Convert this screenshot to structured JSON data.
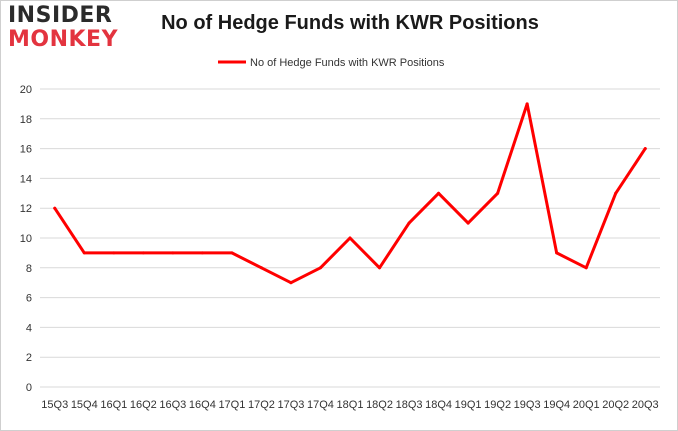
{
  "logo": {
    "line1": "INSIDER",
    "line2": "MONKEY"
  },
  "colors": {
    "series": "#ff0000",
    "grid": "#d9d9d9",
    "logo_dark": "#2b2b2b",
    "logo_red": "#e3343f"
  },
  "chart_data": {
    "type": "line",
    "title": "No of Hedge Funds with KWR Positions",
    "xlabel": "",
    "ylabel": "",
    "ylim": [
      0,
      20
    ],
    "yticks": [
      0,
      2,
      4,
      6,
      8,
      10,
      12,
      14,
      16,
      18,
      20
    ],
    "grid": "horizontal",
    "legend_position": "top-center",
    "categories": [
      "15Q3",
      "15Q4",
      "16Q1",
      "16Q2",
      "16Q3",
      "16Q4",
      "17Q1",
      "17Q2",
      "17Q3",
      "17Q4",
      "18Q1",
      "18Q2",
      "18Q3",
      "18Q4",
      "19Q1",
      "19Q2",
      "19Q3",
      "19Q4",
      "20Q1",
      "20Q2",
      "20Q3"
    ],
    "series": [
      {
        "name": "No of Hedge Funds with KWR Positions",
        "values": [
          12,
          9,
          9,
          9,
          9,
          9,
          9,
          8,
          7,
          8,
          10,
          8,
          11,
          13,
          11,
          13,
          19,
          9,
          8,
          13,
          16
        ]
      }
    ]
  }
}
